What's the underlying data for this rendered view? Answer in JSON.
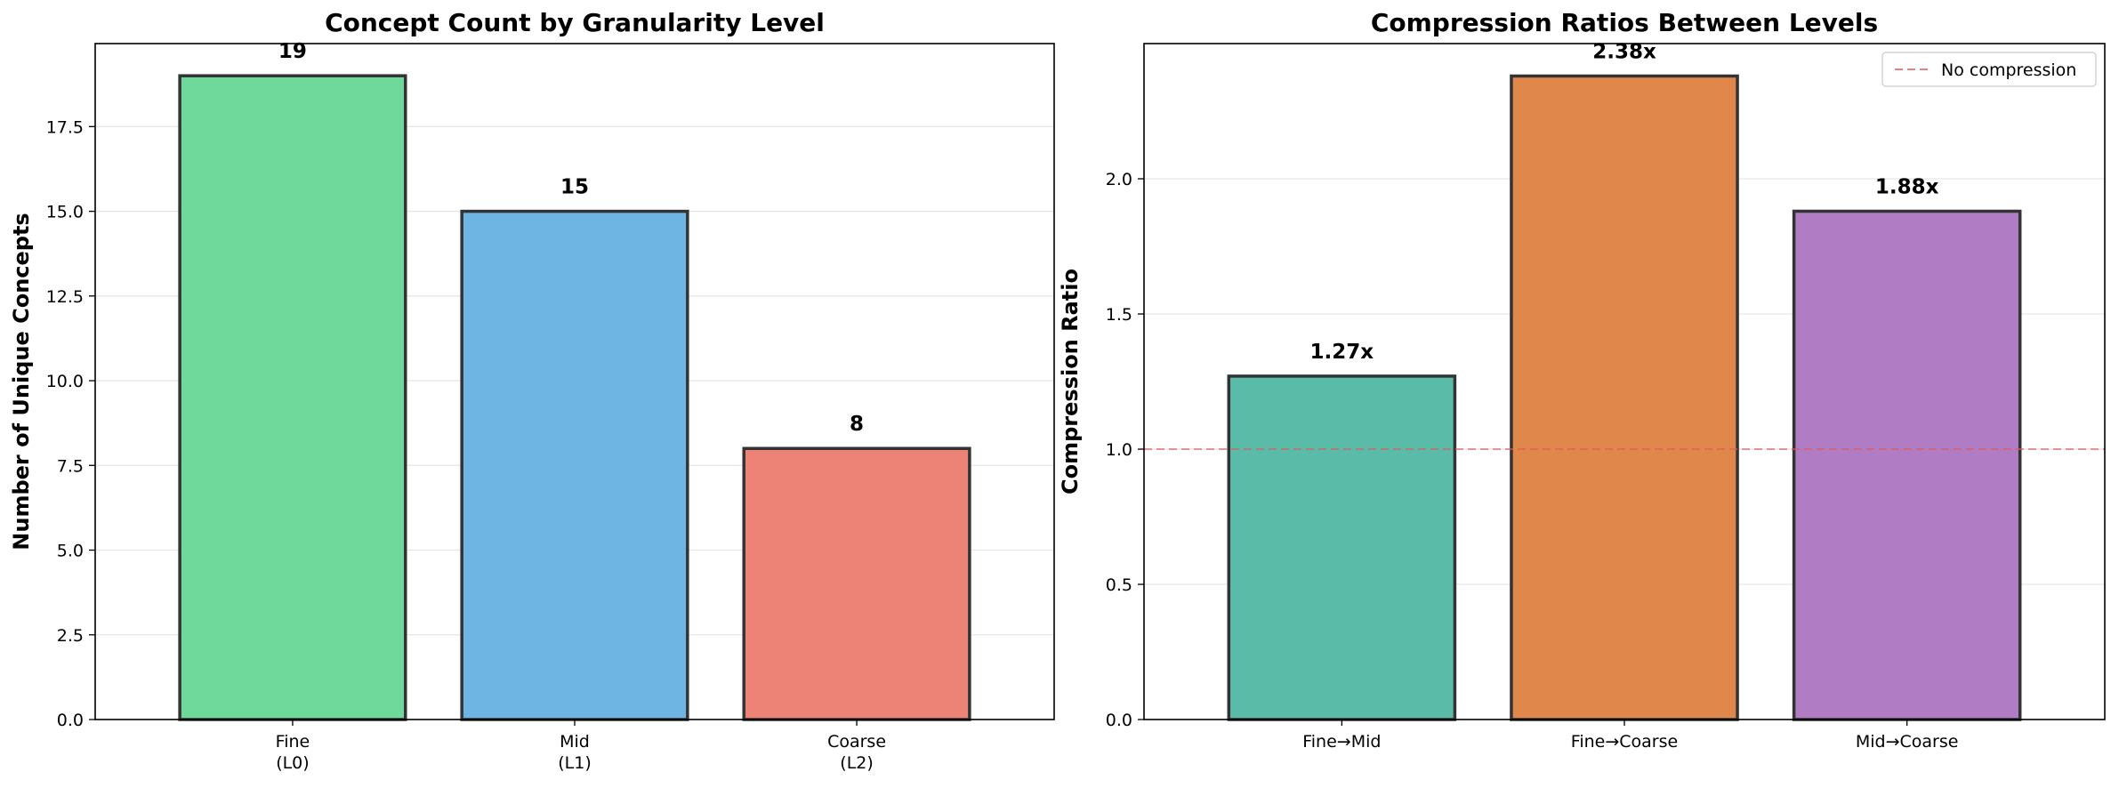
{
  "chart_data": [
    {
      "type": "bar",
      "title": "Concept Count by Granularity Level",
      "xlabel": "",
      "ylabel": "Number of Unique Concepts",
      "categories": [
        [
          "Fine",
          "(L0)"
        ],
        [
          "Mid",
          "(L1)"
        ],
        [
          "Coarse",
          "(L2)"
        ]
      ],
      "values": [
        19,
        15,
        8
      ],
      "value_labels": [
        "19",
        "15",
        "8"
      ],
      "colors": [
        "#6ed99a",
        "#6fb5e4",
        "#ed8276"
      ],
      "ylim": [
        0,
        19.95
      ],
      "yticks": [
        0,
        2.5,
        5,
        7.5,
        10,
        12.5,
        15,
        17.5
      ],
      "ytick_labels": [
        "0.0",
        "2.5",
        "5.0",
        "7.5",
        "10.0",
        "12.5",
        "15.0",
        "17.5"
      ],
      "grid": true
    },
    {
      "type": "bar",
      "title": "Compression Ratios Between Levels",
      "xlabel": "",
      "ylabel": "Compression Ratio",
      "categories": [
        [
          "Fine→Mid"
        ],
        [
          "Fine→Coarse"
        ],
        [
          "Mid→Coarse"
        ]
      ],
      "values": [
        1.27,
        2.38,
        1.88
      ],
      "value_labels": [
        "1.27x",
        "2.38x",
        "1.88x"
      ],
      "colors": [
        "#5bbba9",
        "#e0874b",
        "#b07cc3"
      ],
      "ylim": [
        0,
        2.5
      ],
      "yticks": [
        0,
        0.5,
        1.0,
        1.5,
        2.0
      ],
      "ytick_labels": [
        "0.0",
        "0.5",
        "1.0",
        "1.5",
        "2.0"
      ],
      "grid": true,
      "reference_line": {
        "y": 1.0,
        "label": "No compression",
        "color": "#e05a5a",
        "style": "dashed"
      },
      "legend": {
        "position": "top-right",
        "entries": [
          "No compression"
        ]
      }
    }
  ]
}
